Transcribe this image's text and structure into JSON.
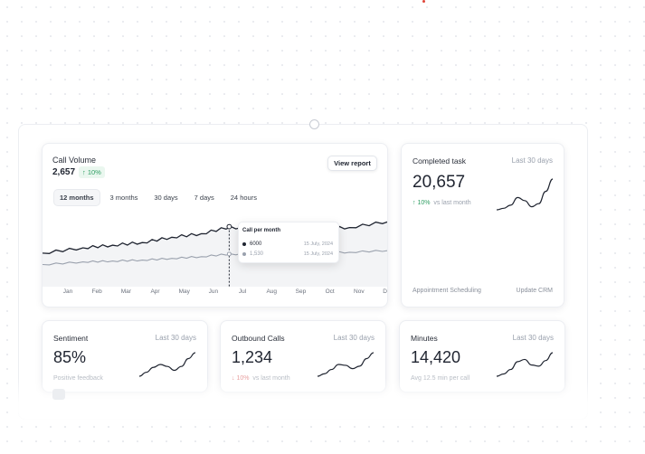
{
  "call_volume": {
    "title": "Call Volume",
    "value": "2,657",
    "change": "10%",
    "view_report": "View report",
    "tabs": [
      {
        "label": "12 months",
        "active": true
      },
      {
        "label": "3 months",
        "active": false
      },
      {
        "label": "30 days",
        "active": false
      },
      {
        "label": "7 days",
        "active": false
      },
      {
        "label": "24 hours",
        "active": false
      }
    ],
    "tooltip": {
      "title": "Call per month",
      "rows": [
        {
          "value": "6000",
          "date": "15 July, 2024",
          "color": "#1f2430"
        },
        {
          "value": "1,530",
          "date": "15 July, 2024",
          "color": "#9aa1ad"
        }
      ]
    }
  },
  "chart_data": {
    "type": "line",
    "categories": [
      "Jan",
      "Feb",
      "Mar",
      "Apr",
      "May",
      "Jun",
      "Jul",
      "Aug",
      "Sep",
      "Oct",
      "Nov",
      "Dec"
    ],
    "series": [
      {
        "values": [
          35,
          40,
          43,
          46,
          52,
          56,
          64,
          57,
          61,
          62,
          63,
          70
        ],
        "color": "#1f2430"
      },
      {
        "values": [
          22,
          24,
          25,
          26,
          28,
          30,
          33,
          32,
          33,
          34,
          35,
          37
        ],
        "color": "#9aa1ad"
      }
    ],
    "ylim": [
      0,
      80
    ],
    "highlight_category": "Jul",
    "grid": false
  },
  "completed_task": {
    "title": "Completed task",
    "period": "Last 30 days",
    "value": "20,657",
    "change": "10%",
    "change_label": "vs last month",
    "footer_left": "Appointment Scheduling",
    "footer_right": "Update CRM",
    "trend": [
      10,
      11,
      13,
      18,
      16,
      12,
      14,
      22,
      30
    ]
  },
  "sentiment": {
    "title": "Sentiment",
    "period": "Last 30 days",
    "value": "85%",
    "sub": "Positive feedback",
    "trend": [
      8,
      12,
      17,
      20,
      18,
      14,
      18,
      26,
      32
    ]
  },
  "outbound": {
    "title": "Outbound Calls",
    "period": "Last 30 days",
    "value": "1,234",
    "change": "10%",
    "sub": "vs last month",
    "trend": [
      6,
      9,
      14,
      20,
      19,
      15,
      18,
      27,
      34
    ]
  },
  "minutes": {
    "title": "Minutes",
    "period": "Last 30 days",
    "value": "14,420",
    "sub": "Avg 12.5 min per call",
    "trend": [
      6,
      8,
      12,
      19,
      21,
      16,
      15,
      20,
      27
    ]
  }
}
